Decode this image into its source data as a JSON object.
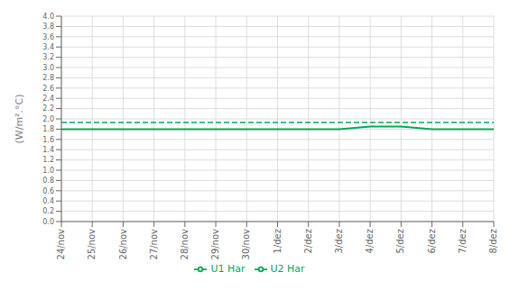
{
  "chart_data": {
    "type": "line",
    "y_label": "(W/m².°C)",
    "categories": [
      "24/nov",
      "25/nov",
      "26/nov",
      "27/nov",
      "28/nov",
      "29/nov",
      "30/nov",
      "1/dez",
      "2/dez",
      "3/dez",
      "4/dez",
      "5/dez",
      "6/dez",
      "7/dez",
      "8/dez"
    ],
    "series": [
      {
        "name": "U1 Har",
        "color": "#00aa55",
        "line_style": "solid",
        "values": [
          1.8,
          1.8,
          1.8,
          1.8,
          1.8,
          1.8,
          1.8,
          1.8,
          1.8,
          1.8,
          1.85,
          1.85,
          1.8,
          1.8,
          1.8
        ]
      },
      {
        "name": "U2 Har",
        "color": "#00aa55",
        "line_style": "dashed",
        "values": [
          1.93,
          1.93,
          1.93,
          1.93,
          1.93,
          1.93,
          1.93,
          1.93,
          1.93,
          1.93,
          1.93,
          1.93,
          1.93,
          1.93,
          1.93
        ]
      }
    ],
    "ylim": [
      0.0,
      4.0
    ],
    "yticks": [
      {
        "value": 0,
        "label": "0.0"
      },
      0.2,
      0.4,
      0.6,
      0.8,
      {
        "value": 1,
        "label": "1.0"
      },
      1.2,
      1.4,
      1.6,
      1.8,
      {
        "value": 2,
        "label": "2.0"
      },
      2.2,
      2.4,
      2.6,
      2.8,
      {
        "value": 3,
        "label": "3.0"
      },
      3.2,
      3.4,
      3.6,
      3.8,
      {
        "value": 4,
        "label": "4.0"
      }
    ],
    "grid": true,
    "legend": "bottom"
  }
}
